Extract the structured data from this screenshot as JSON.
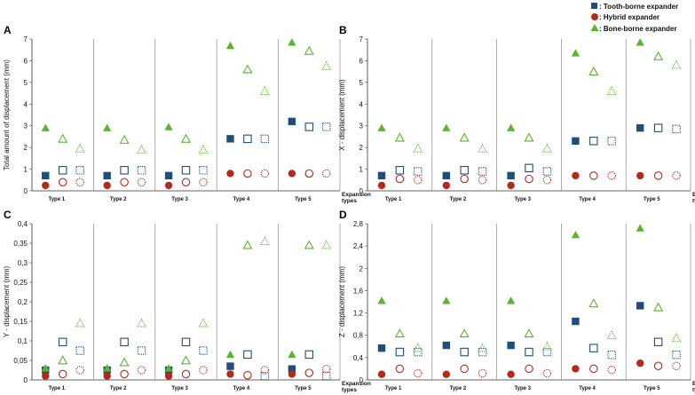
{
  "legend": {
    "tooth": ": Tooth-borne expander",
    "hybrid": ": Hybrid expander",
    "bone": ": Bone-borne expander"
  },
  "colors": {
    "tooth": "#1f4e79",
    "hybrid": "#b22a1c",
    "bone": "#5ab52e"
  },
  "chart_data": [
    {
      "id": "A",
      "type": "scatter",
      "ylabel": "Total amount of displacement (mm)",
      "xlabel": "Expansion types",
      "categories": [
        "Type 1",
        "Type 2",
        "Type 3",
        "Type 4",
        "Type 5"
      ],
      "yticks": [
        "0",
        "1",
        "2",
        "3",
        "4",
        "5",
        "6",
        "7"
      ],
      "ylim": [
        0,
        7
      ],
      "series": [
        {
          "name": "Tooth-borne expander",
          "marker": "square",
          "values": [
            [
              0.7,
              0.95,
              0.95
            ],
            [
              0.7,
              0.95,
              0.95
            ],
            [
              0.7,
              0.95,
              0.95
            ],
            [
              2.4,
              2.4,
              2.4
            ],
            [
              3.2,
              2.95,
              2.95
            ]
          ]
        },
        {
          "name": "Hybrid expander",
          "marker": "circle",
          "values": [
            [
              0.25,
              0.4,
              0.4
            ],
            [
              0.25,
              0.4,
              0.4
            ],
            [
              0.25,
              0.4,
              0.4
            ],
            [
              0.8,
              0.8,
              0.8
            ],
            [
              0.8,
              0.8,
              0.8
            ]
          ]
        },
        {
          "name": "Bone-borne expander",
          "marker": "triangle",
          "values": [
            [
              2.9,
              2.4,
              1.95
            ],
            [
              2.9,
              2.35,
              1.9
            ],
            [
              2.95,
              2.4,
              1.9
            ],
            [
              6.7,
              5.6,
              4.6
            ],
            [
              6.85,
              6.45,
              5.75
            ]
          ]
        }
      ]
    },
    {
      "id": "B",
      "type": "scatter",
      "ylabel": "X - displacement (mm)",
      "xlabel": "Expansion types",
      "categories": [
        "Type 1",
        "Type 2",
        "Type 3",
        "Type 4",
        "Type 5"
      ],
      "yticks": [
        "0",
        "1",
        "2",
        "3",
        "4",
        "5",
        "6",
        "7"
      ],
      "ylim": [
        0,
        7
      ],
      "series": [
        {
          "name": "Tooth-borne expander",
          "marker": "square",
          "values": [
            [
              0.7,
              0.95,
              0.9
            ],
            [
              0.7,
              0.95,
              0.9
            ],
            [
              0.7,
              1.05,
              0.9
            ],
            [
              2.3,
              2.3,
              2.3
            ],
            [
              2.9,
              2.9,
              2.85
            ]
          ]
        },
        {
          "name": "Hybrid expander",
          "marker": "circle",
          "values": [
            [
              0.25,
              0.55,
              0.5
            ],
            [
              0.25,
              0.55,
              0.5
            ],
            [
              0.25,
              0.55,
              0.5
            ],
            [
              0.7,
              0.7,
              0.7
            ],
            [
              0.7,
              0.7,
              0.7
            ]
          ]
        },
        {
          "name": "Bone-borne expander",
          "marker": "triangle",
          "values": [
            [
              2.9,
              2.45,
              1.95
            ],
            [
              2.9,
              2.45,
              1.95
            ],
            [
              2.9,
              2.45,
              1.95
            ],
            [
              6.35,
              5.5,
              4.6
            ],
            [
              6.85,
              6.2,
              5.8
            ]
          ]
        }
      ]
    },
    {
      "id": "C",
      "type": "scatter",
      "ylabel": "Y - displacement (mm)",
      "xlabel": "Expansion types",
      "categories": [
        "Type 1",
        "Type 2",
        "Type 3",
        "Type 4",
        "Type 5"
      ],
      "yticks": [
        "0",
        "0,05",
        "0,1",
        "0,15",
        "0,2",
        "0,25",
        "0,3",
        "0,35",
        "0,4"
      ],
      "ylim": [
        0,
        0.4
      ],
      "series": [
        {
          "name": "Tooth-borne expander",
          "marker": "square",
          "values": [
            [
              0.025,
              0.097,
              0.075
            ],
            [
              0.025,
              0.097,
              0.075
            ],
            [
              0.025,
              0.097,
              0.075
            ],
            [
              0.035,
              0.065,
              0.01
            ],
            [
              0.028,
              0.065,
              0.01
            ]
          ]
        },
        {
          "name": "Hybrid expander",
          "marker": "circle",
          "values": [
            [
              0.01,
              0.015,
              0.025
            ],
            [
              0.01,
              0.015,
              0.025
            ],
            [
              0.01,
              0.015,
              0.025
            ],
            [
              0.015,
              0.012,
              0.025
            ],
            [
              0.015,
              0.018,
              0.028
            ]
          ]
        },
        {
          "name": "Bone-borne expander",
          "marker": "triangle",
          "values": [
            [
              0.03,
              0.05,
              0.145
            ],
            [
              0.03,
              0.045,
              0.145
            ],
            [
              0.03,
              0.05,
              0.145
            ],
            [
              0.065,
              0.345,
              0.355
            ],
            [
              0.065,
              0.345,
              0.345
            ]
          ]
        }
      ]
    },
    {
      "id": "D",
      "type": "scatter",
      "ylabel": "Z - displacement (mm)",
      "xlabel": "Expansion types",
      "categories": [
        "Type 1",
        "Type 2",
        "Type 3",
        "Type 4",
        "Type 5"
      ],
      "yticks": [
        "0",
        "0,4",
        "0,8",
        "1,2",
        "1,6",
        "2",
        "2,4",
        "2,8"
      ],
      "ylim": [
        0,
        2.8
      ],
      "series": [
        {
          "name": "Tooth-borne expander",
          "marker": "square",
          "values": [
            [
              0.57,
              0.5,
              0.5
            ],
            [
              0.62,
              0.5,
              0.5
            ],
            [
              0.62,
              0.5,
              0.5
            ],
            [
              1.05,
              0.57,
              0.45
            ],
            [
              1.33,
              0.68,
              0.45
            ]
          ]
        },
        {
          "name": "Hybrid expander",
          "marker": "circle",
          "values": [
            [
              0.1,
              0.2,
              0.12
            ],
            [
              0.1,
              0.2,
              0.12
            ],
            [
              0.1,
              0.2,
              0.12
            ],
            [
              0.2,
              0.2,
              0.18
            ],
            [
              0.3,
              0.25,
              0.25
            ]
          ]
        },
        {
          "name": "Bone-borne expander",
          "marker": "triangle",
          "values": [
            [
              1.42,
              0.83,
              0.57
            ],
            [
              1.42,
              0.83,
              0.57
            ],
            [
              1.42,
              0.83,
              0.6
            ],
            [
              2.6,
              1.37,
              0.8
            ],
            [
              2.72,
              1.3,
              0.75
            ]
          ]
        }
      ]
    }
  ]
}
